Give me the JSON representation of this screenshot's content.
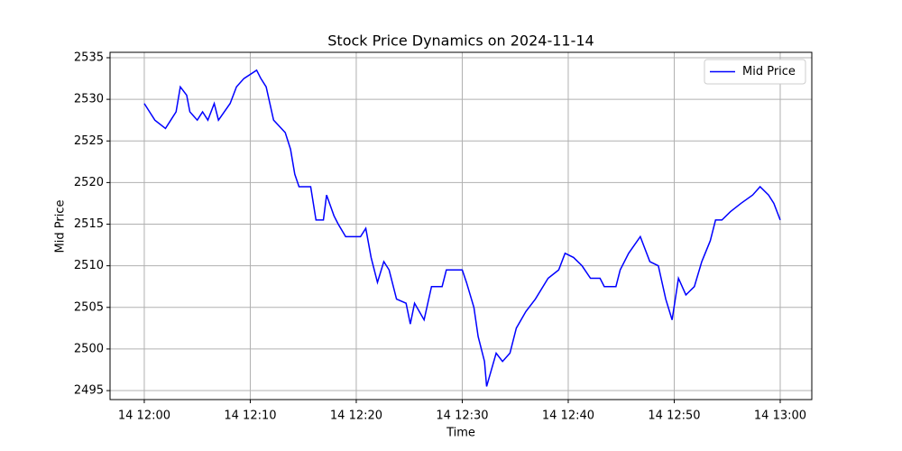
{
  "chart_data": {
    "type": "line",
    "title": "Stock Price Dynamics on 2024-11-14",
    "x_label": "Time",
    "y_label": "Mid Price",
    "x": [
      0,
      0.5,
      1,
      2,
      2.5,
      3,
      3.4,
      4,
      4.3,
      5,
      5.5,
      6,
      6.6,
      7,
      8.1,
      8.7,
      9.4,
      10.6,
      11,
      11.5,
      12.2,
      13.3,
      13.8,
      14.2,
      14.6,
      15.7,
      16.2,
      16.9,
      17.2,
      17.9,
      18.3,
      19,
      20.4,
      20.9,
      21.4,
      22,
      22.6,
      23.1,
      23.8,
      24.7,
      25.1,
      25.5,
      26.4,
      27.1,
      28.1,
      28.5,
      30,
      30.4,
      31.1,
      31.5,
      32.1,
      32.3,
      33.2,
      33.8,
      34.5,
      35.1,
      36,
      36.9,
      38.1,
      39.1,
      39.7,
      40.5,
      41.3,
      42.1,
      43,
      43.4,
      44.5,
      44.9,
      45.7,
      46.8,
      47.7,
      48.5,
      49.2,
      49.8,
      50.4,
      51.1,
      51.9,
      52.6,
      53.4,
      53.9,
      54.5,
      55.3,
      56.3,
      57.4,
      58.1,
      58.9,
      59.4,
      60
    ],
    "series": [
      {
        "name": "Mid Price",
        "color": "#0000ff",
        "values": [
          2529.5,
          2528.5,
          2527.5,
          2526.5,
          2527.5,
          2528.5,
          2531.5,
          2530.5,
          2528.5,
          2527.5,
          2528.5,
          2527.5,
          2529.5,
          2527.5,
          2529.5,
          2531.5,
          2532.5,
          2533.5,
          2532.5,
          2531.5,
          2527.5,
          2526,
          2524,
          2521,
          2519.5,
          2519.5,
          2515.5,
          2515.5,
          2518.5,
          2516,
          2515,
          2513.5,
          2513.5,
          2514.5,
          2511,
          2508,
          2510.5,
          2509.5,
          2506,
          2505.5,
          2503,
          2505.5,
          2503.5,
          2507.5,
          2507.5,
          2509.5,
          2509.5,
          2508,
          2505,
          2501.5,
          2498.5,
          2495.5,
          2499.5,
          2498.5,
          2499.5,
          2502.5,
          2504.5,
          2506,
          2508.5,
          2509.5,
          2511.5,
          2511,
          2510,
          2508.5,
          2508.5,
          2507.5,
          2507.5,
          2509.5,
          2511.5,
          2513.5,
          2510.5,
          2510,
          2506,
          2503.5,
          2508.5,
          2506.5,
          2507.5,
          2510.5,
          2513,
          2515.5,
          2515.5,
          2516.5,
          2517.5,
          2518.5,
          2519.5,
          2518.5,
          2517.5,
          2515.5
        ]
      }
    ],
    "xlim": [
      -3.23,
      62.98
    ],
    "ylim": [
      2493.92,
      2535.65
    ],
    "xticks": [
      {
        "value": 0,
        "label": "14 12:00"
      },
      {
        "value": 10,
        "label": "14 12:10"
      },
      {
        "value": 20,
        "label": "14 12:20"
      },
      {
        "value": 30,
        "label": "14 12:30"
      },
      {
        "value": 40,
        "label": "14 12:40"
      },
      {
        "value": 50,
        "label": "14 12:50"
      },
      {
        "value": 60,
        "label": "14 13:00"
      }
    ],
    "yticks": [
      2495,
      2500,
      2505,
      2510,
      2515,
      2520,
      2525,
      2530,
      2535
    ],
    "grid": true,
    "legend": "upper right"
  }
}
